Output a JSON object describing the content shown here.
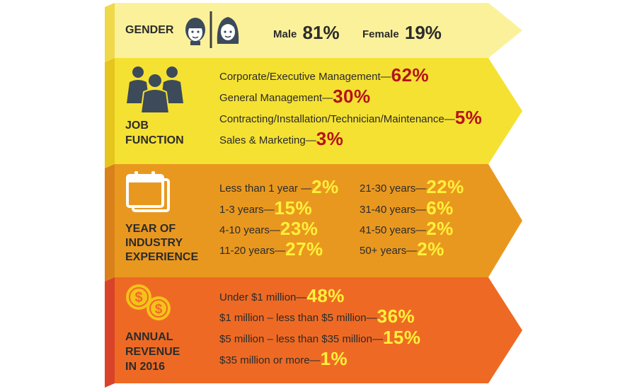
{
  "colors": {
    "gender_band": "#fbf19b",
    "job_band": "#f5e131",
    "experience_band": "#e9981f",
    "revenue_band": "#ee6a24",
    "percent_red": "#b5121b",
    "percent_yellow": "#fff03a"
  },
  "gender": {
    "heading": "GENDER",
    "male_label": "Male",
    "male_value": "81%",
    "female_label": "Female",
    "female_value": "19%",
    "icons": [
      "male-face-icon",
      "female-face-icon"
    ]
  },
  "job_function": {
    "heading": [
      "JOB",
      "FUNCTION"
    ],
    "icon": "people-group-icon",
    "items": [
      {
        "label": "Corporate/Executive Management—",
        "value": "62%"
      },
      {
        "label": "General Management—",
        "value": "30%"
      },
      {
        "label": "Contracting/Installation/Technician/Maintenance—",
        "value": "5%"
      },
      {
        "label": "Sales & Marketing—",
        "value": "3%"
      }
    ]
  },
  "experience": {
    "heading": [
      "YEAR OF",
      "INDUSTRY",
      "EXPERIENCE"
    ],
    "icon": "calendar-icon",
    "left_items": [
      {
        "label": "Less than 1 year —",
        "value": "2%"
      },
      {
        "label": "1-3 years—",
        "value": "15%"
      },
      {
        "label": "4-10 years—",
        "value": "23%"
      },
      {
        "label": "11-20 years—",
        "value": "27%"
      }
    ],
    "right_items": [
      {
        "label": "21-30 years—",
        "value": "22%"
      },
      {
        "label": "31-40 years—",
        "value": "6%"
      },
      {
        "label": "41-50 years—",
        "value": "2%"
      },
      {
        "label": "50+ years—",
        "value": "2%"
      }
    ]
  },
  "revenue": {
    "heading": [
      "ANNUAL",
      "REVENUE",
      "IN 2016"
    ],
    "icon": "coins-icon",
    "items": [
      {
        "label": "Under $1 million—",
        "value": "48%"
      },
      {
        "label": "$1 million – less than $5 million—",
        "value": "36%"
      },
      {
        "label": "$5 million – less than $35 million—",
        "value": "15%"
      },
      {
        "label": "$35 million or more—",
        "value": "1%"
      }
    ]
  }
}
